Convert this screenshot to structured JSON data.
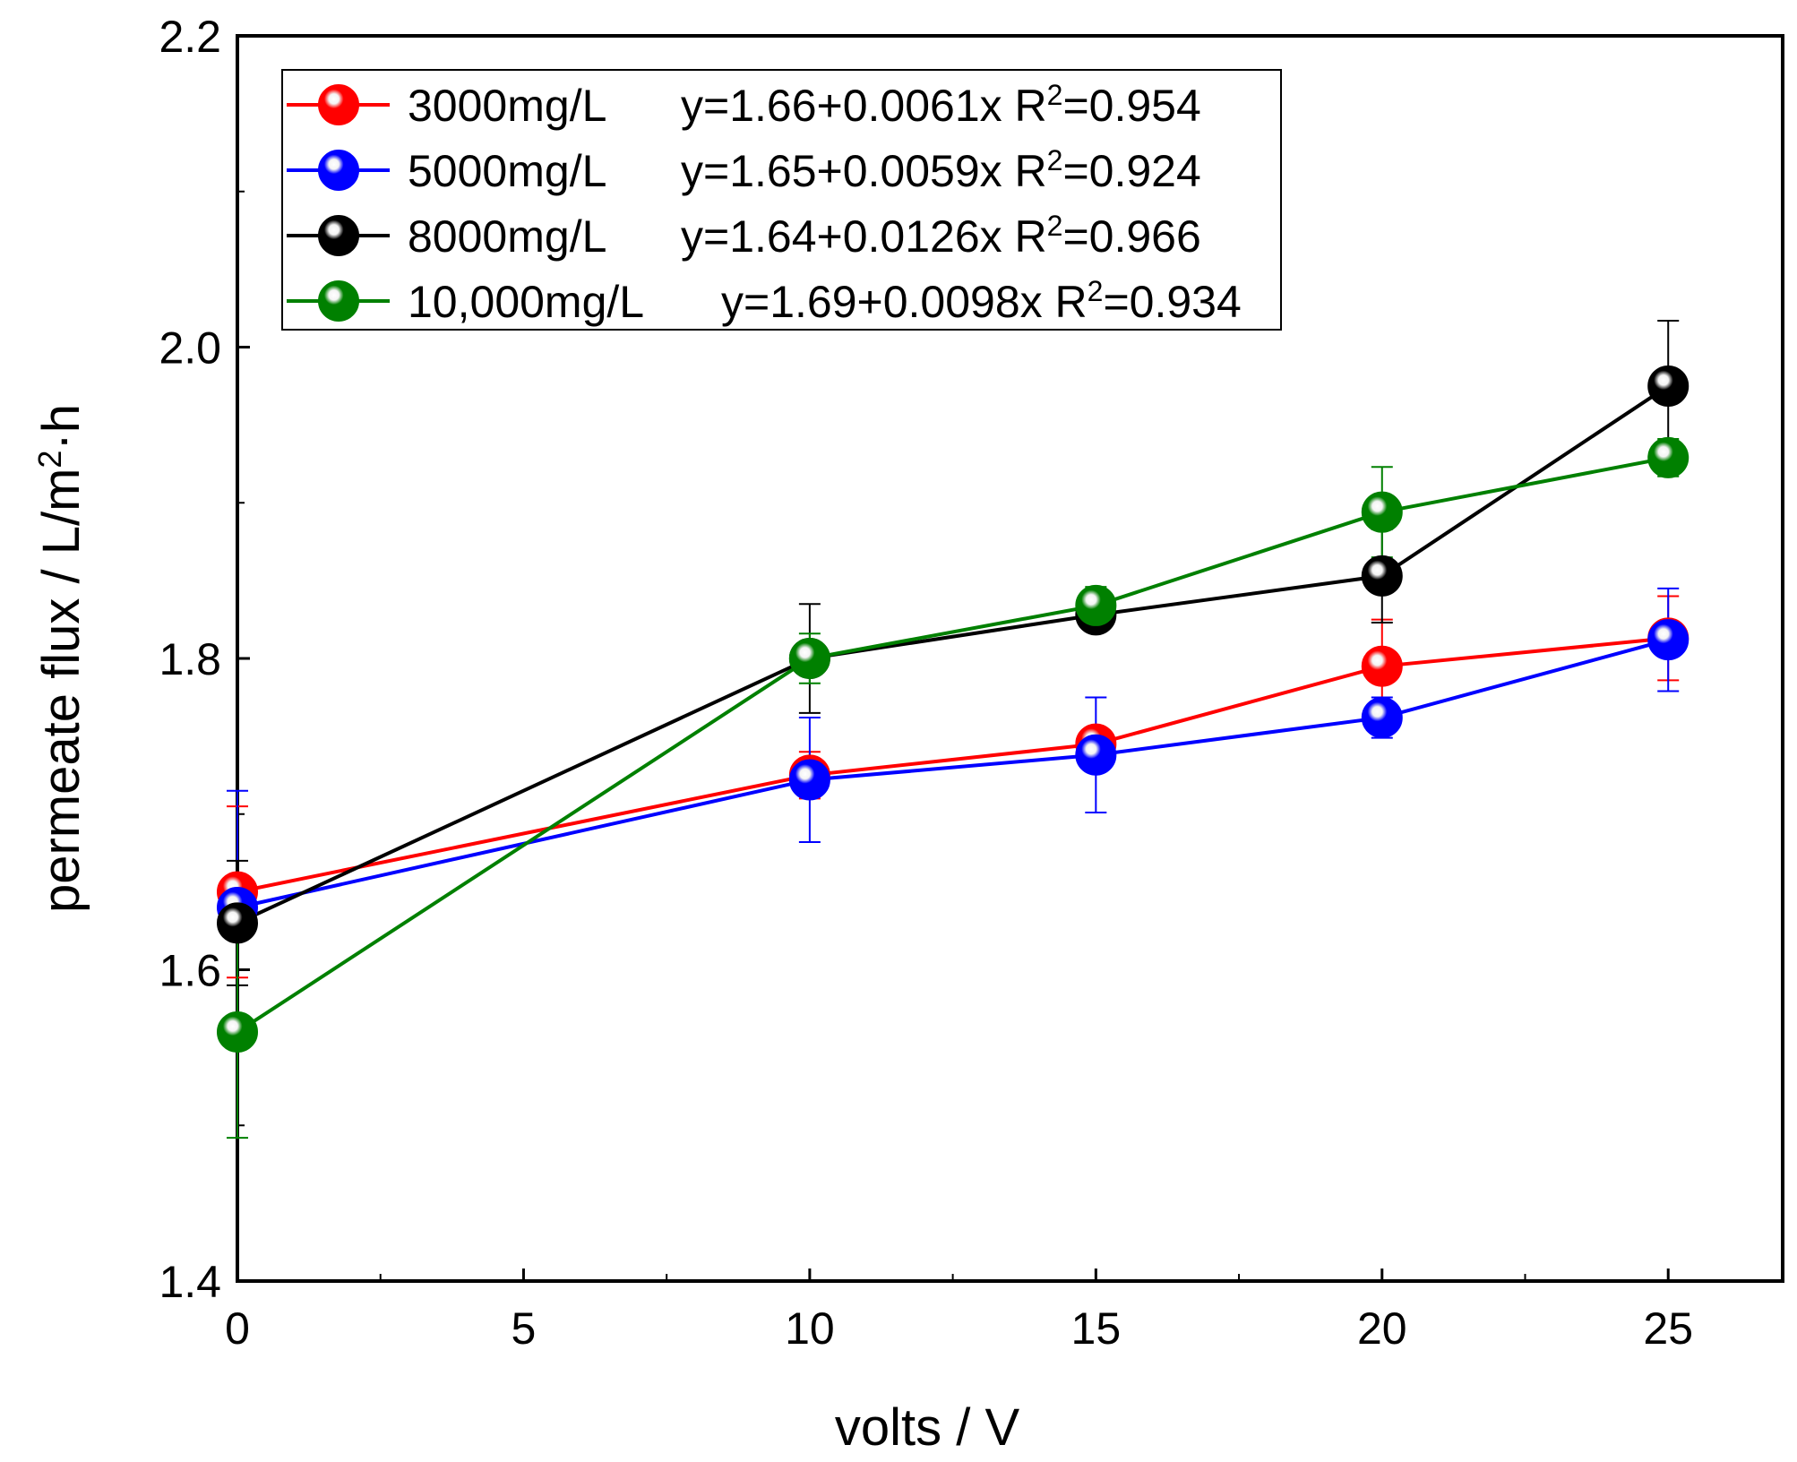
{
  "chart_data": {
    "type": "line",
    "xlabel": "volts / V",
    "ylabel_main": "permeate flux  / L/m",
    "ylabel_sup": "2",
    "ylabel_tail": "·h",
    "xlim": [
      0,
      27
    ],
    "ylim": [
      1.4,
      2.2
    ],
    "x_ticks": [
      0,
      5,
      10,
      15,
      20,
      25
    ],
    "x_tick_labels": [
      "0",
      "5",
      "10",
      "15",
      "20",
      "25"
    ],
    "y_ticks": [
      1.4,
      1.6,
      1.8,
      2.0,
      2.2
    ],
    "y_tick_labels": [
      "1.4",
      "1.6",
      "1.8",
      "2.0",
      "2.2"
    ],
    "grid": false,
    "legend_position": "top-left",
    "series": [
      {
        "name": "3000mg/L",
        "equation": "y=1.66+0.0061x",
        "r2_label": "R",
        "r2_sup": "2",
        "r2_value": "=0.954",
        "color": "#ff0000",
        "x": [
          0,
          10,
          15,
          20,
          25
        ],
        "y": [
          1.65,
          1.725,
          1.745,
          1.795,
          1.813
        ],
        "err": [
          0.055,
          0.015,
          0.01,
          0.03,
          0.027
        ]
      },
      {
        "name": "5000mg/L",
        "equation": "y=1.65+0.0059x",
        "r2_label": "R",
        "r2_sup": "2",
        "r2_value": "=0.924",
        "color": "#0000ff",
        "x": [
          0,
          10,
          15,
          20,
          25
        ],
        "y": [
          1.64,
          1.722,
          1.738,
          1.762,
          1.812
        ],
        "err": [
          0.075,
          0.04,
          0.037,
          0.013,
          0.033
        ]
      },
      {
        "name": "8000mg/L",
        "equation": "y=1.64+0.0126x",
        "r2_label": "R",
        "r2_sup": "2",
        "r2_value": "=0.966",
        "color": "#000000",
        "x": [
          0,
          10,
          15,
          20,
          25
        ],
        "y": [
          1.63,
          1.8,
          1.828,
          1.853,
          1.975
        ],
        "err": [
          0.04,
          0.035,
          0.01,
          0.03,
          0.042
        ]
      },
      {
        "name": "10,000mg/L",
        "equation": "y=1.69+0.0098x",
        "r2_label": "R",
        "r2_sup": "2",
        "r2_value": "=0.934",
        "color": "#008000",
        "x": [
          0,
          10,
          15,
          20,
          25
        ],
        "y": [
          1.56,
          1.8,
          1.834,
          1.894,
          1.929
        ],
        "err": [
          0.068,
          0.016,
          0.012,
          0.029,
          0.012
        ]
      }
    ]
  }
}
